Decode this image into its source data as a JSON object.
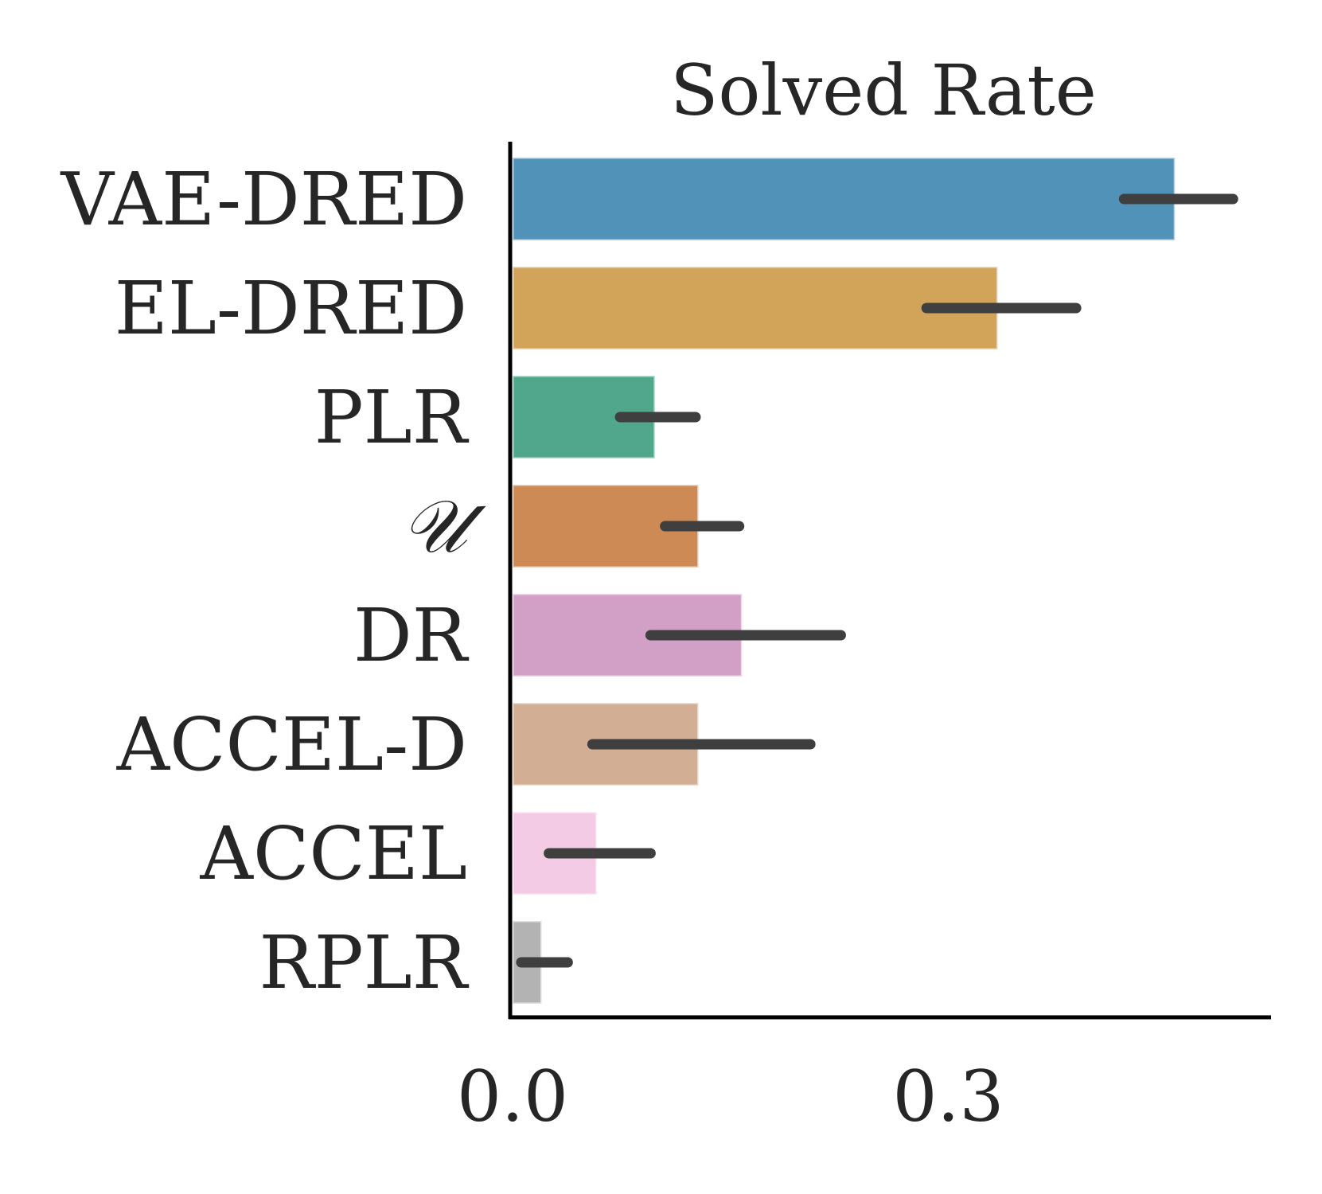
{
  "chart_data": {
    "type": "bar",
    "orientation": "horizontal",
    "title": "Solved Rate",
    "xlabel": "",
    "ylabel": "",
    "xlim": [
      0.0,
      0.52
    ],
    "xticks": [
      0.0,
      0.3
    ],
    "xtick_labels": [
      "0.0",
      "0.3"
    ],
    "grid": false,
    "legend": "none",
    "categories": [
      "VAE-DRED",
      "EL-DRED",
      "PLR",
      "𝒰",
      "DR",
      "ACCEL-D",
      "ACCEL",
      "RPLR"
    ],
    "values": [
      0.456,
      0.334,
      0.098,
      0.128,
      0.158,
      0.128,
      0.058,
      0.02
    ],
    "error_low": [
      0.421,
      0.285,
      0.074,
      0.105,
      0.095,
      0.055,
      0.025,
      0.006
    ],
    "error_high": [
      0.496,
      0.388,
      0.126,
      0.156,
      0.226,
      0.205,
      0.095,
      0.038
    ],
    "colors": [
      "#5192b8",
      "#d1a45a",
      "#50a78b",
      "#cd8a55",
      "#d2a0c6",
      "#d1ae94",
      "#f4cbe4",
      "#b3b3b3"
    ],
    "error_color": "#3f3f3f"
  }
}
